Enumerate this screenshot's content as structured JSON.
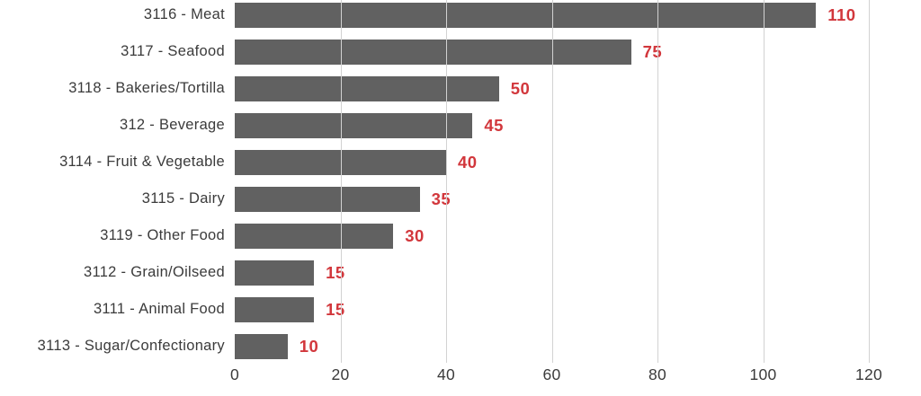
{
  "chart_data": {
    "type": "bar",
    "orientation": "horizontal",
    "title": "",
    "xlabel": "",
    "ylabel": "",
    "categories": [
      "3116 - Meat",
      "3117 - Seafood",
      "3118 - Bakeries/Tortilla",
      "312 - Beverage",
      "3114 - Fruit & Vegetable",
      "3115 - Dairy",
      "3119 - Other Food",
      "3112 - Grain/Oilseed",
      "3111 - Animal Food",
      "3113 - Sugar/Confectionary"
    ],
    "values": [
      110,
      75,
      50,
      45,
      40,
      35,
      30,
      15,
      15,
      10
    ],
    "value_labels": [
      "110",
      "75",
      "50",
      "45",
      "40",
      "35",
      "30",
      "15",
      "15",
      "10"
    ],
    "xlim": [
      0,
      120
    ],
    "x_ticks": [
      0,
      20,
      40,
      60,
      80,
      100,
      120
    ],
    "x_tick_labels": [
      "0",
      "20",
      "40",
      "60",
      "80",
      "100",
      "120"
    ],
    "grid": "vertical major gridlines every 20, drawn over bars",
    "legend": "none",
    "colors": {
      "bar": "#616161",
      "value_label": "#d2373c",
      "axis_text": "#3b3b3b",
      "gridline": "#d2d2d2",
      "background": "#ffffff"
    }
  }
}
